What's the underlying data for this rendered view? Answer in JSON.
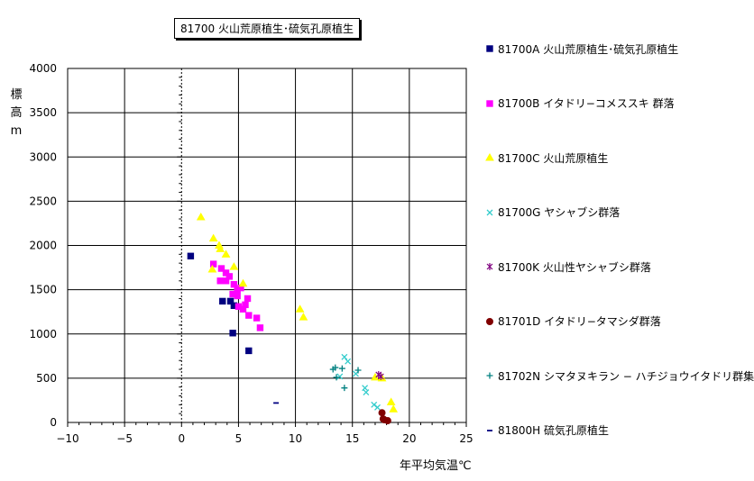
{
  "chart_data": {
    "type": "scatter",
    "title": "81700 火山荒原植生･硫気孔原植生",
    "xlabel": "年平均気温℃",
    "ylabel": [
      "標",
      "高",
      "m"
    ],
    "xlim": [
      -10,
      25
    ],
    "ylim": [
      0,
      4000
    ],
    "x_ticks": [
      "−10",
      "−5",
      "0",
      "5",
      "10",
      "15",
      "20",
      "25"
    ],
    "y_ticks": [
      "0",
      "500",
      "1000",
      "1500",
      "2000",
      "2500",
      "3000",
      "3500",
      "4000"
    ],
    "grid": true,
    "legend_position": "right",
    "series": [
      {
        "name": "81700A 火山荒原植生･硫気孔原植生",
        "marker": "square",
        "color": "#000080",
        "points": [
          [
            0.8,
            1880
          ],
          [
            3.6,
            1370
          ],
          [
            4.3,
            1370
          ],
          [
            4.6,
            1320
          ],
          [
            4.5,
            1010
          ],
          [
            5.9,
            810
          ]
        ]
      },
      {
        "name": "81700B イタドリ−コメススキ 群落",
        "marker": "square",
        "color": "#ff00ff",
        "points": [
          [
            2.8,
            1790
          ],
          [
            3.5,
            1740
          ],
          [
            3.9,
            1690
          ],
          [
            4.2,
            1650
          ],
          [
            3.9,
            1600
          ],
          [
            3.4,
            1600
          ],
          [
            4.6,
            1560
          ],
          [
            4.9,
            1500
          ],
          [
            5.2,
            1520
          ],
          [
            4.5,
            1450
          ],
          [
            4.9,
            1430
          ],
          [
            5.8,
            1400
          ],
          [
            5.6,
            1330
          ],
          [
            5.0,
            1310
          ],
          [
            5.4,
            1280
          ],
          [
            5.9,
            1210
          ],
          [
            6.6,
            1180
          ],
          [
            6.9,
            1070
          ]
        ]
      },
      {
        "name": "81700C 火山荒原植生",
        "marker": "triangle",
        "color": "#ffff00",
        "points": [
          [
            1.7,
            2320
          ],
          [
            2.8,
            2080
          ],
          [
            3.3,
            2000
          ],
          [
            3.4,
            1960
          ],
          [
            3.9,
            1900
          ],
          [
            4.6,
            1760
          ],
          [
            2.7,
            1730
          ],
          [
            5.4,
            1570
          ],
          [
            10.4,
            1280
          ],
          [
            10.7,
            1190
          ],
          [
            17.0,
            510
          ],
          [
            17.6,
            500
          ],
          [
            18.4,
            230
          ],
          [
            18.6,
            150
          ]
        ]
      },
      {
        "name": "81700G ヤシャブシ群落",
        "marker": "x",
        "color": "#33cccc",
        "points": [
          [
            14.3,
            740
          ],
          [
            14.6,
            690
          ],
          [
            15.3,
            550
          ],
          [
            13.9,
            520
          ],
          [
            16.1,
            390
          ],
          [
            16.2,
            340
          ],
          [
            16.9,
            200
          ],
          [
            17.2,
            170
          ]
        ]
      },
      {
        "name": "81700K 火山性ヤシャブシ群落",
        "marker": "star",
        "color": "#800080",
        "points": [
          [
            17.3,
            540
          ],
          [
            17.5,
            520
          ]
        ]
      },
      {
        "name": "81701D イタドリ−タマシダ群落",
        "marker": "circle",
        "color": "#800000",
        "points": [
          [
            17.6,
            110
          ],
          [
            17.7,
            40
          ],
          [
            17.8,
            30
          ],
          [
            18.1,
            20
          ]
        ]
      },
      {
        "name": "81702N シマタヌキラン − ハチジョウイタドリ群集",
        "marker": "plus",
        "color": "#008080",
        "points": [
          [
            13.3,
            600
          ],
          [
            13.5,
            620
          ],
          [
            13.6,
            510
          ],
          [
            14.1,
            610
          ],
          [
            14.3,
            390
          ],
          [
            15.5,
            590
          ]
        ]
      },
      {
        "name": "81800H 硫気孔原植生",
        "marker": "dash",
        "color": "#000080",
        "points": [
          [
            8.3,
            220
          ]
        ]
      }
    ]
  }
}
